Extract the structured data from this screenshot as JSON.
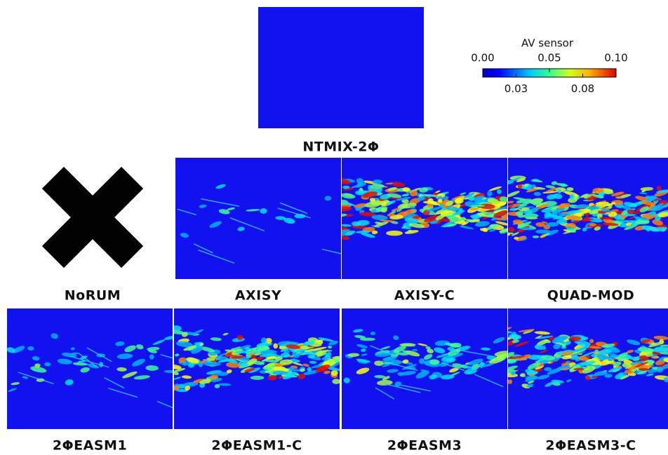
{
  "colorbar": {
    "title": "AV sensor",
    "ticks_top": [
      {
        "value": 0,
        "label": "0.00"
      },
      {
        "value": 0.05,
        "label": "0.05"
      },
      {
        "value": 0.1,
        "label": "0.10"
      }
    ],
    "ticks_bottom": [
      {
        "value": 0.025,
        "label": "0.03"
      },
      {
        "value": 0.075,
        "label": "0.08"
      }
    ]
  },
  "panels": [
    {
      "label": "NTMIX-2Φ"
    },
    {
      "label": "NoRUM"
    },
    {
      "label": "AXISY"
    },
    {
      "label": "AXISY-C"
    },
    {
      "label": "QUAD-MOD"
    },
    {
      "label": "2ΦEASM1"
    },
    {
      "label": "2ΦEASM1-C"
    },
    {
      "label": "2ΦEASM3"
    },
    {
      "label": "2ΦEASM3-C"
    }
  ]
}
